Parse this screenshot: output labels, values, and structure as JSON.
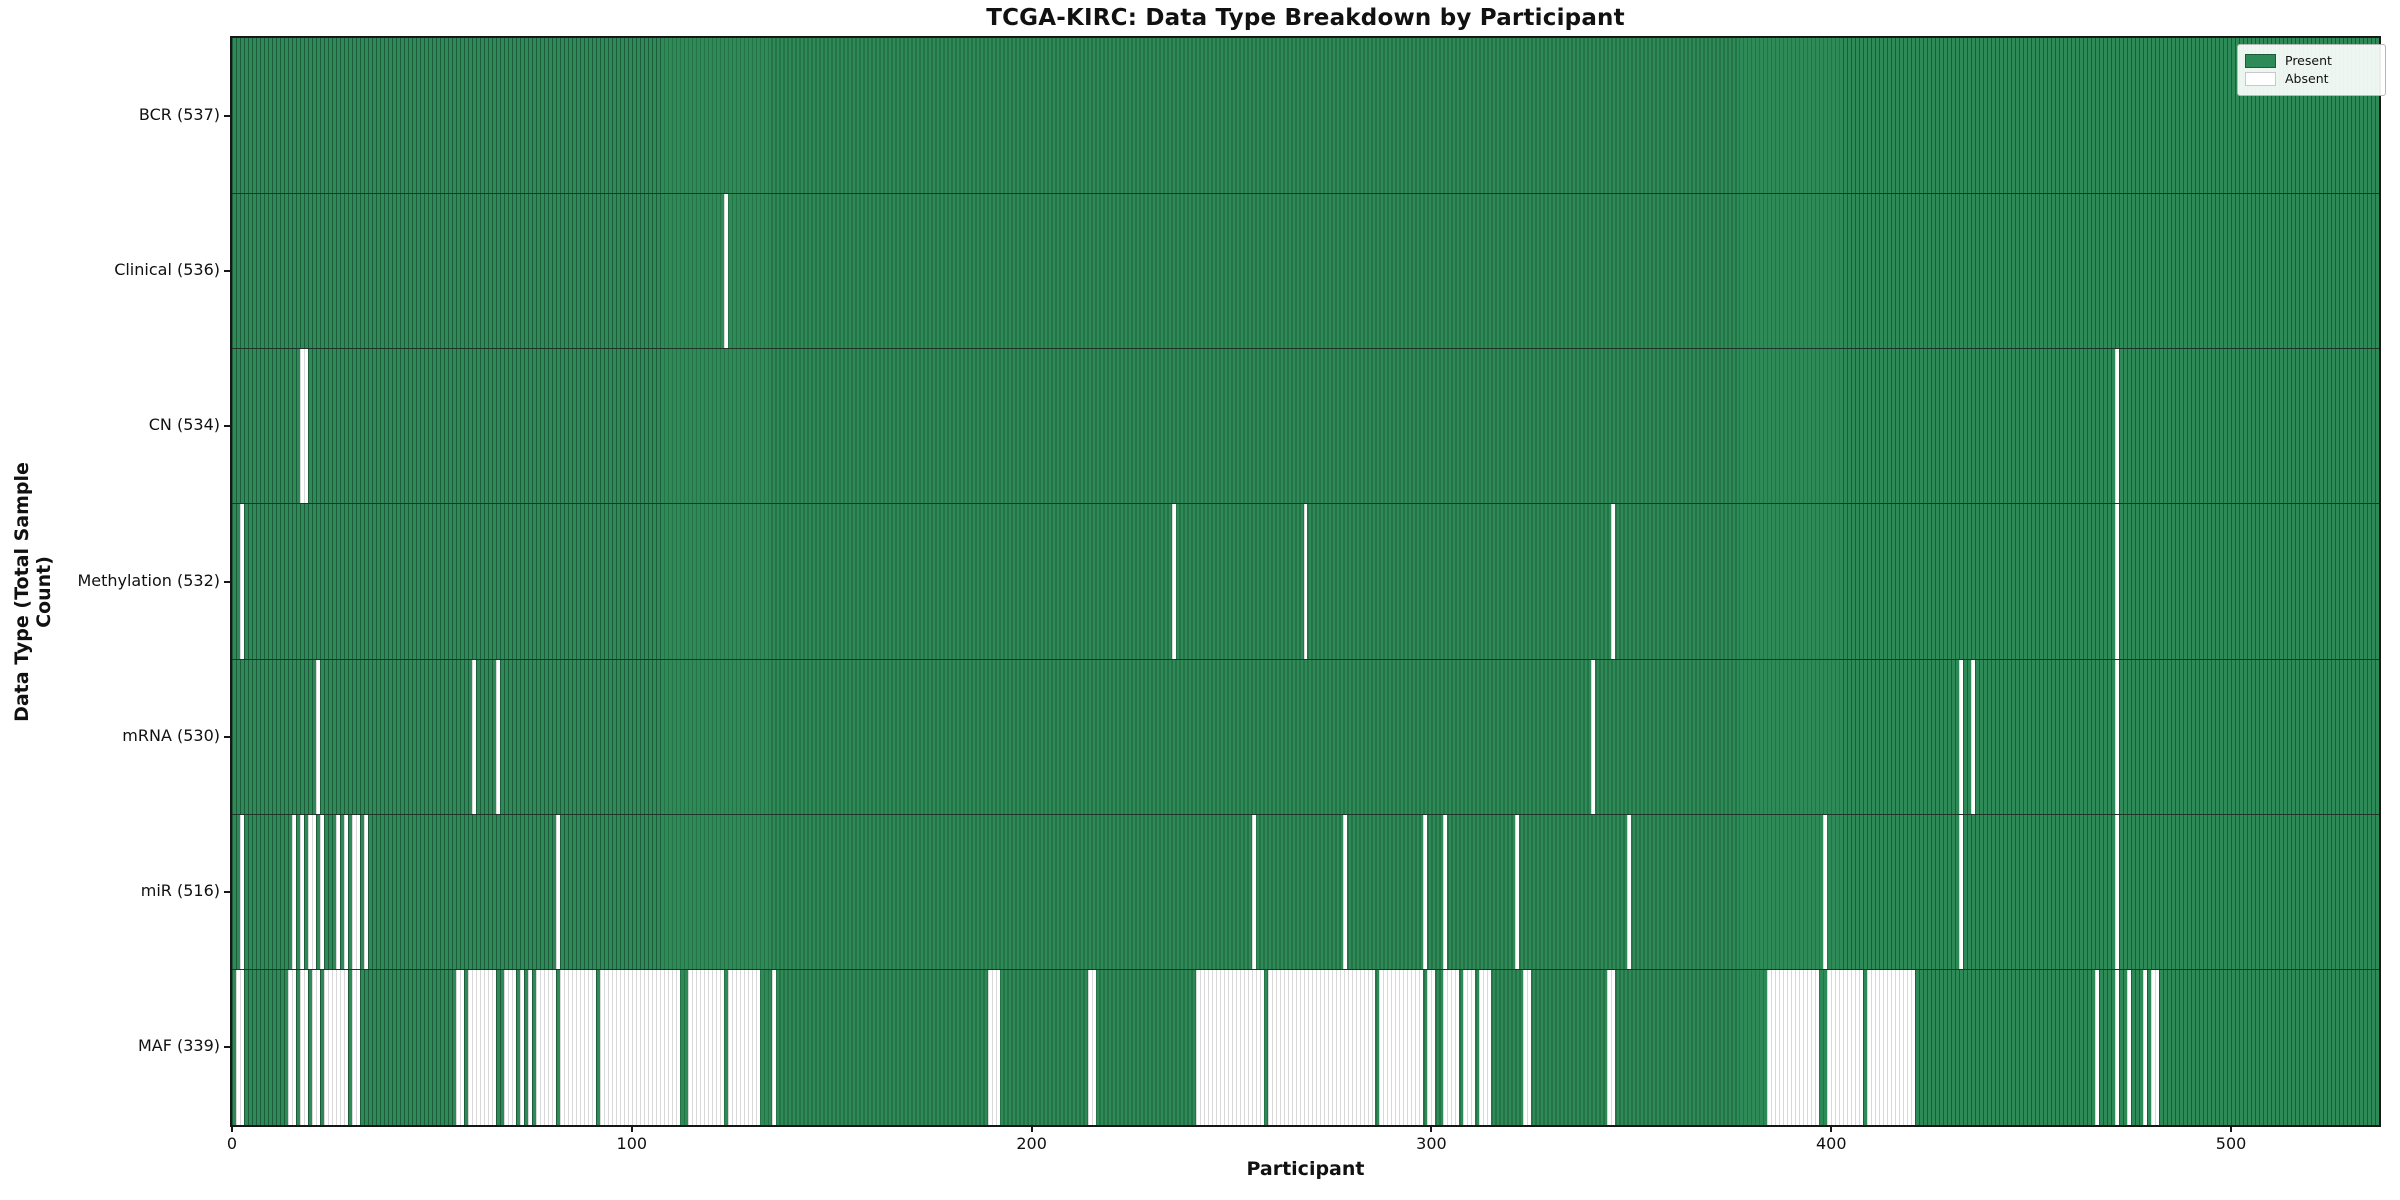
{
  "chart_data": {
    "type": "heatmap",
    "title": "TCGA-KIRC: Data Type Breakdown by Participant",
    "xlabel": "Participant",
    "ylabel": "Data Type (Total Sample Count)",
    "n_participants": 537,
    "x_ticks": [
      0,
      100,
      200,
      300,
      400,
      500
    ],
    "xlim": [
      0,
      537
    ],
    "grid": false,
    "legend_position": "upper right",
    "legend": [
      {
        "label": "Present",
        "color": "#2e8b57"
      },
      {
        "label": "Absent",
        "color": "#ffffff"
      }
    ],
    "colors": {
      "present": "#2e8b57",
      "present_edge": "#1c5c3a",
      "absent": "#ffffff",
      "absent_edge": "#d9d9d9",
      "separator": "#20352a"
    },
    "rows": [
      {
        "label": "BCR (537)",
        "name": "bcr",
        "present_count": 537,
        "absent_count": 0,
        "absent_ranges": []
      },
      {
        "label": "Clinical (536)",
        "name": "clinical",
        "present_count": 536,
        "absent_count": 1,
        "absent_ranges": [
          [
            123,
            123
          ]
        ]
      },
      {
        "label": "CN (534)",
        "name": "cn",
        "present_count": 534,
        "absent_count": 3,
        "absent_ranges": [
          [
            17,
            18
          ],
          [
            471,
            471
          ]
        ]
      },
      {
        "label": "Methylation (532)",
        "name": "methylation",
        "present_count": 532,
        "absent_count": 5,
        "absent_ranges": [
          [
            2,
            2
          ],
          [
            235,
            235
          ],
          [
            268,
            268
          ],
          [
            345,
            345
          ],
          [
            471,
            471
          ]
        ]
      },
      {
        "label": "mRNA (530)",
        "name": "mrna",
        "present_count": 530,
        "absent_count": 7,
        "absent_ranges": [
          [
            21,
            21
          ],
          [
            60,
            60
          ],
          [
            66,
            66
          ],
          [
            340,
            340
          ],
          [
            432,
            432
          ],
          [
            435,
            435
          ],
          [
            471,
            471
          ]
        ]
      },
      {
        "label": "miR (516)",
        "name": "mir",
        "present_count": 516,
        "absent_count": 21,
        "absent_ranges": [
          [
            2,
            2
          ],
          [
            15,
            15
          ],
          [
            17,
            17
          ],
          [
            19,
            20
          ],
          [
            22,
            22
          ],
          [
            26,
            26
          ],
          [
            28,
            28
          ],
          [
            30,
            31
          ],
          [
            33,
            33
          ],
          [
            81,
            81
          ],
          [
            255,
            255
          ],
          [
            278,
            278
          ],
          [
            298,
            298
          ],
          [
            303,
            303
          ],
          [
            321,
            321
          ],
          [
            349,
            349
          ],
          [
            398,
            398
          ],
          [
            432,
            432
          ],
          [
            471,
            471
          ]
        ]
      },
      {
        "label": "MAF (339)",
        "name": "maf",
        "present_count": 339,
        "absent_count": 198,
        "absent_ranges": [
          [
            1,
            2
          ],
          [
            14,
            15
          ],
          [
            17,
            18
          ],
          [
            20,
            21
          ],
          [
            23,
            28
          ],
          [
            30,
            31
          ],
          [
            56,
            57
          ],
          [
            59,
            65
          ],
          [
            68,
            70
          ],
          [
            72,
            72
          ],
          [
            74,
            74
          ],
          [
            76,
            80
          ],
          [
            82,
            90
          ],
          [
            92,
            111
          ],
          [
            114,
            122
          ],
          [
            124,
            131
          ],
          [
            135,
            135
          ],
          [
            189,
            191
          ],
          [
            214,
            215
          ],
          [
            241,
            257
          ],
          [
            259,
            285
          ],
          [
            287,
            297
          ],
          [
            299,
            300
          ],
          [
            303,
            306
          ],
          [
            308,
            310
          ],
          [
            312,
            314
          ],
          [
            323,
            324
          ],
          [
            344,
            345
          ],
          [
            384,
            396
          ],
          [
            399,
            407
          ],
          [
            409,
            420
          ],
          [
            466,
            466
          ],
          [
            471,
            471
          ],
          [
            474,
            474
          ],
          [
            478,
            478
          ],
          [
            480,
            481
          ]
        ]
      }
    ]
  }
}
